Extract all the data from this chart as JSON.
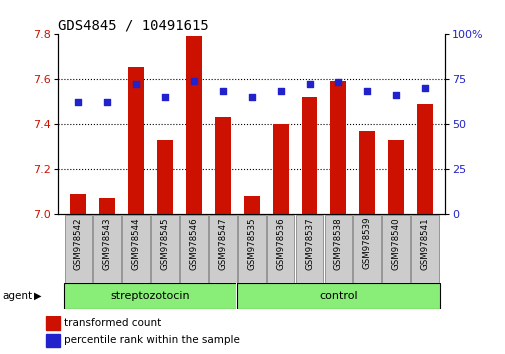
{
  "title": "GDS4845 / 10491615",
  "samples": [
    "GSM978542",
    "GSM978543",
    "GSM978544",
    "GSM978545",
    "GSM978546",
    "GSM978547",
    "GSM978535",
    "GSM978536",
    "GSM978537",
    "GSM978538",
    "GSM978539",
    "GSM978540",
    "GSM978541"
  ],
  "bar_values": [
    7.09,
    7.07,
    7.65,
    7.33,
    7.79,
    7.43,
    7.08,
    7.4,
    7.52,
    7.59,
    7.37,
    7.33,
    7.49
  ],
  "percentile_values": [
    62,
    62,
    72,
    65,
    74,
    68,
    65,
    68,
    72,
    73,
    68,
    66,
    70
  ],
  "bar_color": "#cc1100",
  "percentile_color": "#2222cc",
  "ylim_left": [
    7.0,
    7.8
  ],
  "ylim_right": [
    0,
    100
  ],
  "yticks_left": [
    7.0,
    7.2,
    7.4,
    7.6,
    7.8
  ],
  "yticks_right": [
    0,
    25,
    50,
    75,
    100
  ],
  "ytick_labels_right": [
    "0",
    "25",
    "50",
    "75",
    "100%"
  ],
  "groups": [
    {
      "label": "streptozotocin",
      "start": 0,
      "end": 6,
      "color": "#88ee77"
    },
    {
      "label": "control",
      "start": 6,
      "end": 13,
      "color": "#88ee77"
    }
  ],
  "agent_label": "agent",
  "legend_items": [
    {
      "label": "transformed count",
      "color": "#cc1100"
    },
    {
      "label": "percentile rank within the sample",
      "color": "#2222cc"
    }
  ],
  "title_fontsize": 10,
  "tick_fontsize": 8,
  "bar_bottom": 7.0,
  "sample_box_color": "#cccccc",
  "sample_box_edge": "#888888",
  "fig_bg": "#ffffff",
  "group_divider": 6
}
